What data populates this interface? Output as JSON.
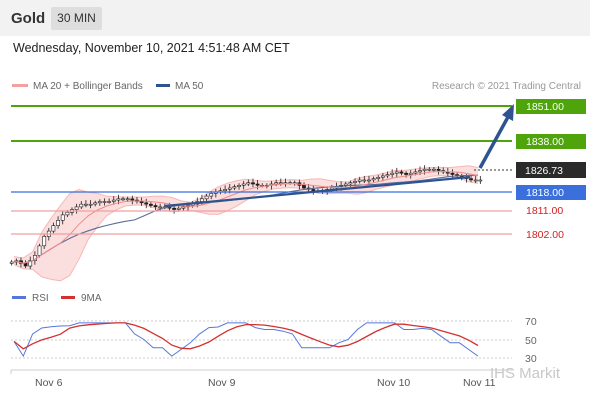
{
  "header": {
    "title": "Gold",
    "interval": "30 MIN",
    "datetime": "Wednesday, November 10, 2021 4:51:48 AM CET"
  },
  "legend": {
    "bollinger_label": "MA 20 + Bollinger Bands",
    "ma50_label": "MA 50",
    "copyright": "Research © 2021 Trading Central"
  },
  "levels": {
    "resistance_2": "1851.00",
    "resistance_1": "1838.00",
    "last_price": "1826.73",
    "pivot": "1818.00",
    "support_1": "1811.00",
    "support_2": "1802.00"
  },
  "rsi_legend": {
    "rsi_label": "RSI",
    "ma_label": "9MA"
  },
  "rsi_ticks": [
    "70",
    "50",
    "30"
  ],
  "x_labels": [
    "Nov 6",
    "Nov 9",
    "Nov 10",
    "Nov 11"
  ],
  "watermark": "IHS Markit",
  "colors": {
    "green_level": "#4ea40a",
    "pivot_blue": "#3a6fdc",
    "support_red": "#f0a0a0",
    "bollinger_fill": "#fbdada",
    "ma50": "#5c6d96",
    "trendline": "#2d5491",
    "candle_up": "#ffffff",
    "candle_down": "#1f1f1f",
    "rsi_line": "#5577dd",
    "rsi_ma": "#d43030"
  },
  "chart_data": {
    "type": "candlestick",
    "price_range": [
      1796.5,
      1854.5
    ],
    "x_categories": [
      "Nov 6",
      "Nov 9",
      "Nov 10",
      "Nov 11"
    ],
    "close_series": [
      1797,
      1795,
      1799,
      1806,
      1810,
      1814,
      1816,
      1818,
      1818,
      1819,
      1819,
      1820,
      1820,
      1819,
      1818,
      1817,
      1817,
      1816,
      1817,
      1818,
      1820,
      1822,
      1823,
      1824,
      1825,
      1826,
      1825,
      1825,
      1826,
      1826,
      1826,
      1824,
      1823,
      1823,
      1824,
      1825,
      1826,
      1827,
      1827,
      1828,
      1829,
      1830,
      1829,
      1830,
      1831,
      1831,
      1830,
      1829,
      1828,
      1827,
      1827
    ],
    "levels": {
      "resistance": [
        1851,
        1838
      ],
      "pivot": 1818,
      "support": [
        1811,
        1802
      ],
      "last": 1826.73
    },
    "rsi": {
      "ticks": [
        70,
        50,
        30
      ],
      "range": [
        30,
        70
      ]
    }
  }
}
